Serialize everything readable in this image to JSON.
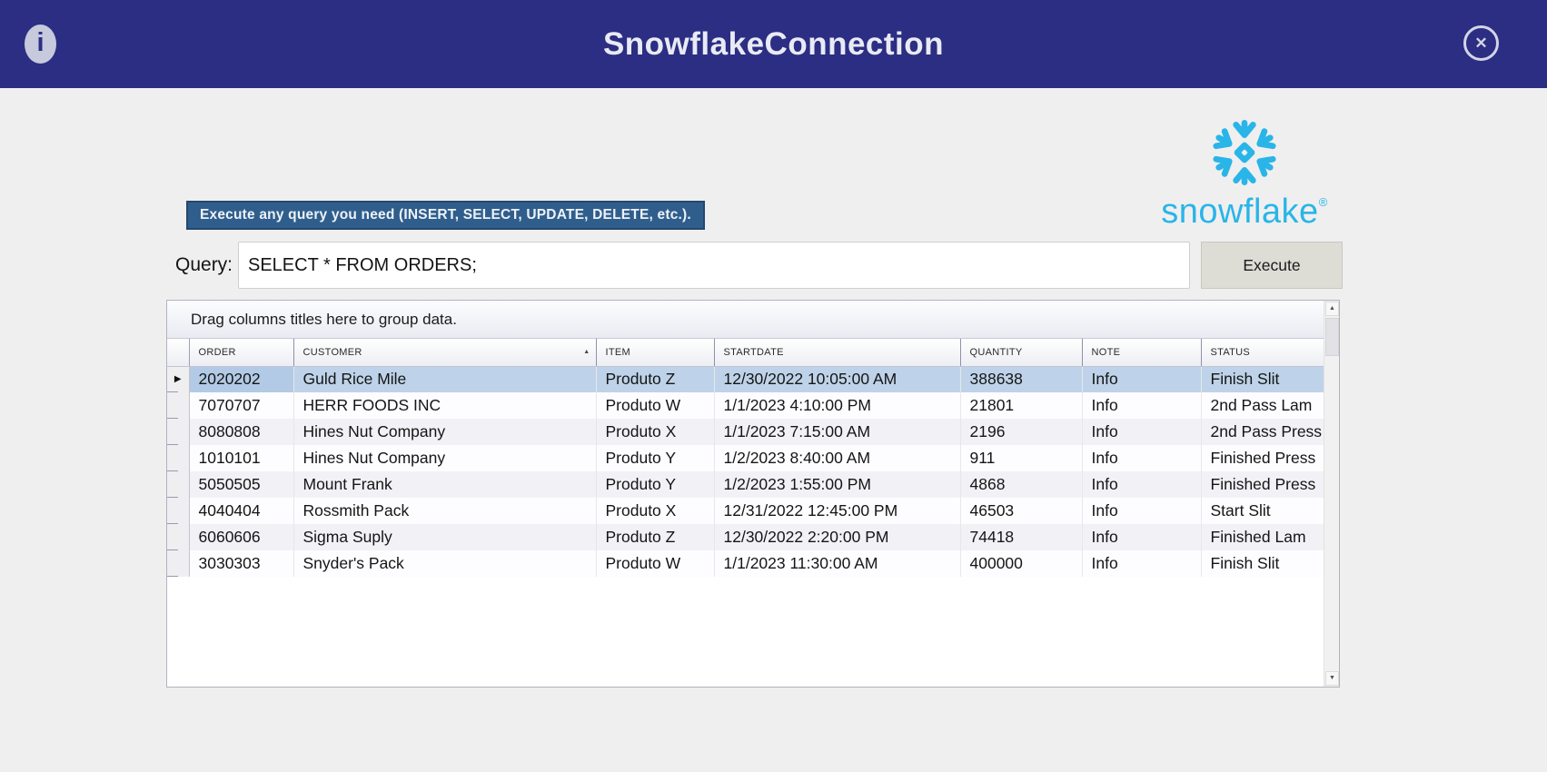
{
  "window": {
    "title": "SnowflakeConnection",
    "info_icon": "i",
    "close_icon": "✕"
  },
  "colors": {
    "titlebar_bg": "#2B2E83",
    "snowflake_blue": "#29B5E8",
    "banner_bg": "#305E8C",
    "selected_row_bg": "#BED3E9",
    "execute_btn_bg": "#DDDDD6"
  },
  "logo": {
    "wordmark": "snowflake",
    "registered": "®"
  },
  "banner": {
    "text": "Execute any query you need (INSERT, SELECT, UPDATE, DELETE, etc.)."
  },
  "query": {
    "label": "Query:",
    "value": "SELECT * FROM ORDERS;",
    "execute_label": "Execute"
  },
  "grid": {
    "group_hint": "Drag columns titles here to group data.",
    "columns": [
      {
        "key": "order",
        "label": "ORDER"
      },
      {
        "key": "customer",
        "label": "CUSTOMER",
        "sort": "asc"
      },
      {
        "key": "item",
        "label": "ITEM"
      },
      {
        "key": "startdate",
        "label": "STARTDATE"
      },
      {
        "key": "quantity",
        "label": "QUANTITY"
      },
      {
        "key": "note",
        "label": "NOTE"
      },
      {
        "key": "status",
        "label": "STATUS"
      }
    ],
    "selected_row": 0,
    "rows": [
      {
        "order": "2020202",
        "customer": "Guld Rice Mile",
        "item": "Produto Z",
        "startdate": "12/30/2022 10:05:00 AM",
        "quantity": "388638",
        "note": "Info",
        "status": "Finish Slit"
      },
      {
        "order": "7070707",
        "customer": "HERR FOODS INC",
        "item": "Produto W",
        "startdate": "1/1/2023 4:10:00 PM",
        "quantity": "21801",
        "note": "Info",
        "status": "2nd Pass Lam"
      },
      {
        "order": "8080808",
        "customer": "Hines Nut Company",
        "item": "Produto X",
        "startdate": "1/1/2023 7:15:00 AM",
        "quantity": "2196",
        "note": "Info",
        "status": "2nd Pass Press"
      },
      {
        "order": "1010101",
        "customer": "Hines Nut Company",
        "item": "Produto Y",
        "startdate": "1/2/2023 8:40:00 AM",
        "quantity": "911",
        "note": "Info",
        "status": "Finished Press"
      },
      {
        "order": "5050505",
        "customer": "Mount Frank",
        "item": "Produto Y",
        "startdate": "1/2/2023 1:55:00 PM",
        "quantity": "4868",
        "note": "Info",
        "status": "Finished Press"
      },
      {
        "order": "4040404",
        "customer": "Rossmith Pack",
        "item": "Produto X",
        "startdate": "12/31/2022 12:45:00 PM",
        "quantity": "46503",
        "note": "Info",
        "status": "Start Slit"
      },
      {
        "order": "6060606",
        "customer": "Sigma Suply",
        "item": "Produto Z",
        "startdate": "12/30/2022 2:20:00 PM",
        "quantity": "74418",
        "note": "Info",
        "status": "Finished Lam"
      },
      {
        "order": "3030303",
        "customer": "Snyder's Pack",
        "item": "Produto W",
        "startdate": "1/1/2023 11:30:00 AM",
        "quantity": "400000",
        "note": "Info",
        "status": "Finish Slit"
      }
    ]
  },
  "scrollbar": {
    "up_arrow": "▲",
    "down_arrow": "▼"
  }
}
